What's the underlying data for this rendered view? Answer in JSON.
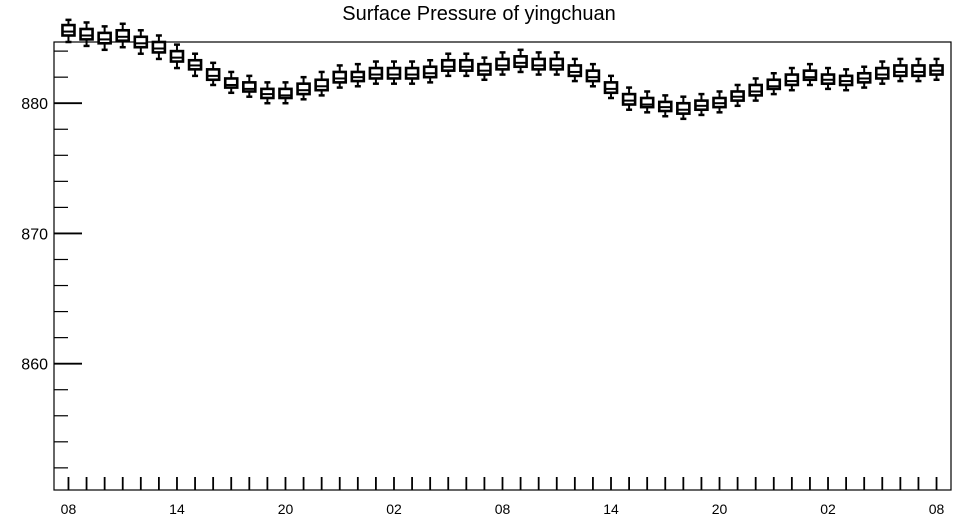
{
  "chart_data": {
    "type": "box",
    "title": "Surface Pressure of yingchuan",
    "xlabel": "",
    "ylabel": "",
    "ylim": [
      850.3,
      884.7
    ],
    "y_ticks": [
      860,
      870,
      880
    ],
    "x_tick_labels": [
      "08",
      "14",
      "20",
      "02",
      "08",
      "14",
      "20",
      "02",
      "08"
    ],
    "x_tick_label_positions": [
      0,
      6,
      12,
      18,
      24,
      30,
      36,
      42,
      48
    ],
    "x_range": [
      -0.8,
      48.8
    ],
    "grid": false,
    "legend": "none",
    "boxes": [
      {
        "x": 0,
        "min": 884.7,
        "q1": 885.2,
        "median": 885.5,
        "q3": 886.0,
        "max": 886.4
      },
      {
        "x": 1,
        "min": 884.4,
        "q1": 884.9,
        "median": 885.2,
        "q3": 885.7,
        "max": 886.2
      },
      {
        "x": 2,
        "min": 884.1,
        "q1": 884.6,
        "median": 884.9,
        "q3": 885.4,
        "max": 885.9
      },
      {
        "x": 3,
        "min": 884.3,
        "q1": 884.8,
        "median": 885.1,
        "q3": 885.6,
        "max": 886.1
      },
      {
        "x": 4,
        "min": 883.8,
        "q1": 884.3,
        "median": 884.6,
        "q3": 885.1,
        "max": 885.6
      },
      {
        "x": 5,
        "min": 883.4,
        "q1": 883.9,
        "median": 884.2,
        "q3": 884.7,
        "max": 885.2
      },
      {
        "x": 6,
        "min": 882.7,
        "q1": 883.2,
        "median": 883.5,
        "q3": 884.0,
        "max": 884.5
      },
      {
        "x": 7,
        "min": 882.1,
        "q1": 882.6,
        "median": 882.9,
        "q3": 883.3,
        "max": 883.8
      },
      {
        "x": 8,
        "min": 881.4,
        "q1": 881.8,
        "median": 882.1,
        "q3": 882.6,
        "max": 883.1
      },
      {
        "x": 9,
        "min": 880.8,
        "q1": 881.2,
        "median": 881.4,
        "q3": 881.9,
        "max": 882.4
      },
      {
        "x": 10,
        "min": 880.5,
        "q1": 880.9,
        "median": 881.1,
        "q3": 881.6,
        "max": 882.1
      },
      {
        "x": 11,
        "min": 880.0,
        "q1": 880.4,
        "median": 880.7,
        "q3": 881.1,
        "max": 881.6
      },
      {
        "x": 12,
        "min": 880.0,
        "q1": 880.4,
        "median": 880.6,
        "q3": 881.1,
        "max": 881.6
      },
      {
        "x": 13,
        "min": 880.3,
        "q1": 880.7,
        "median": 881.0,
        "q3": 881.5,
        "max": 882.0
      },
      {
        "x": 14,
        "min": 880.6,
        "q1": 881.0,
        "median": 881.3,
        "q3": 881.8,
        "max": 882.4
      },
      {
        "x": 15,
        "min": 881.2,
        "q1": 881.6,
        "median": 881.9,
        "q3": 882.4,
        "max": 882.9
      },
      {
        "x": 16,
        "min": 881.3,
        "q1": 881.7,
        "median": 882.0,
        "q3": 882.4,
        "max": 883.0
      },
      {
        "x": 17,
        "min": 881.5,
        "q1": 881.9,
        "median": 882.2,
        "q3": 882.7,
        "max": 883.2
      },
      {
        "x": 18,
        "min": 881.5,
        "q1": 881.9,
        "median": 882.2,
        "q3": 882.7,
        "max": 883.2
      },
      {
        "x": 19,
        "min": 881.5,
        "q1": 881.9,
        "median": 882.2,
        "q3": 882.7,
        "max": 883.2
      },
      {
        "x": 20,
        "min": 881.6,
        "q1": 882.0,
        "median": 882.3,
        "q3": 882.8,
        "max": 883.3
      },
      {
        "x": 21,
        "min": 882.1,
        "q1": 882.5,
        "median": 882.8,
        "q3": 883.3,
        "max": 883.8
      },
      {
        "x": 22,
        "min": 882.1,
        "q1": 882.5,
        "median": 882.8,
        "q3": 883.3,
        "max": 883.8
      },
      {
        "x": 23,
        "min": 881.8,
        "q1": 882.2,
        "median": 882.5,
        "q3": 883.0,
        "max": 883.5
      },
      {
        "x": 24,
        "min": 882.2,
        "q1": 882.6,
        "median": 882.9,
        "q3": 883.4,
        "max": 883.9
      },
      {
        "x": 25,
        "min": 882.4,
        "q1": 882.8,
        "median": 883.1,
        "q3": 883.6,
        "max": 884.1
      },
      {
        "x": 26,
        "min": 882.2,
        "q1": 882.6,
        "median": 882.9,
        "q3": 883.4,
        "max": 883.9
      },
      {
        "x": 27,
        "min": 882.2,
        "q1": 882.6,
        "median": 882.9,
        "q3": 883.4,
        "max": 883.9
      },
      {
        "x": 28,
        "min": 881.7,
        "q1": 882.1,
        "median": 882.4,
        "q3": 882.9,
        "max": 883.4
      },
      {
        "x": 29,
        "min": 881.3,
        "q1": 881.7,
        "median": 882.0,
        "q3": 882.5,
        "max": 883.0
      },
      {
        "x": 30,
        "min": 880.4,
        "q1": 880.8,
        "median": 881.1,
        "q3": 881.6,
        "max": 882.1
      },
      {
        "x": 31,
        "min": 879.5,
        "q1": 879.9,
        "median": 880.2,
        "q3": 880.7,
        "max": 881.2
      },
      {
        "x": 32,
        "min": 879.3,
        "q1": 879.7,
        "median": 879.9,
        "q3": 880.4,
        "max": 880.9
      },
      {
        "x": 33,
        "min": 879.0,
        "q1": 879.4,
        "median": 879.7,
        "q3": 880.1,
        "max": 880.6
      },
      {
        "x": 34,
        "min": 878.8,
        "q1": 879.2,
        "median": 879.5,
        "q3": 880.0,
        "max": 880.5
      },
      {
        "x": 35,
        "min": 879.1,
        "q1": 879.5,
        "median": 879.8,
        "q3": 880.2,
        "max": 880.7
      },
      {
        "x": 36,
        "min": 879.3,
        "q1": 879.7,
        "median": 880.0,
        "q3": 880.4,
        "max": 880.9
      },
      {
        "x": 37,
        "min": 879.8,
        "q1": 880.2,
        "median": 880.5,
        "q3": 880.9,
        "max": 881.4
      },
      {
        "x": 38,
        "min": 880.2,
        "q1": 880.6,
        "median": 880.9,
        "q3": 881.4,
        "max": 881.9
      },
      {
        "x": 39,
        "min": 880.7,
        "q1": 881.1,
        "median": 881.3,
        "q3": 881.8,
        "max": 882.3
      },
      {
        "x": 40,
        "min": 881.0,
        "q1": 881.4,
        "median": 881.7,
        "q3": 882.2,
        "max": 882.7
      },
      {
        "x": 41,
        "min": 881.4,
        "q1": 881.8,
        "median": 882.0,
        "q3": 882.5,
        "max": 883.0
      },
      {
        "x": 42,
        "min": 881.1,
        "q1": 881.5,
        "median": 881.8,
        "q3": 882.2,
        "max": 882.7
      },
      {
        "x": 43,
        "min": 881.0,
        "q1": 881.4,
        "median": 881.7,
        "q3": 882.1,
        "max": 882.6
      },
      {
        "x": 44,
        "min": 881.2,
        "q1": 881.6,
        "median": 881.9,
        "q3": 882.3,
        "max": 882.8
      },
      {
        "x": 45,
        "min": 881.5,
        "q1": 881.9,
        "median": 882.2,
        "q3": 882.7,
        "max": 883.2
      },
      {
        "x": 46,
        "min": 881.7,
        "q1": 882.1,
        "median": 882.4,
        "q3": 882.9,
        "max": 883.4
      },
      {
        "x": 47,
        "min": 881.7,
        "q1": 882.1,
        "median": 882.4,
        "q3": 882.9,
        "max": 883.4
      },
      {
        "x": 48,
        "min": 881.8,
        "q1": 882.2,
        "median": 882.5,
        "q3": 882.9,
        "max": 883.4
      }
    ]
  }
}
